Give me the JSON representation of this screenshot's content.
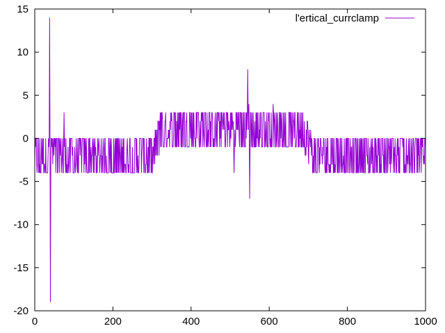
{
  "chart_data": {
    "type": "line",
    "title": "",
    "xlabel": "",
    "ylabel": "",
    "xlim": [
      0,
      1000
    ],
    "ylim": [
      -20,
      15
    ],
    "x_ticks": [
      0,
      200,
      400,
      600,
      800,
      1000
    ],
    "y_ticks": [
      -20,
      -15,
      -10,
      -5,
      0,
      5,
      10,
      15
    ],
    "x_tick_labels": [
      "0",
      "200",
      "400",
      "600",
      "800",
      "1000"
    ],
    "y_tick_labels": [
      "-20",
      "-15",
      "-10",
      "-5",
      "0",
      "5",
      "10",
      "15"
    ],
    "grid": false,
    "legend_position": "top-right",
    "series": [
      {
        "name": "l'ertical_currclamp",
        "color": "#9400d3",
        "x": [
          0,
          10,
          20,
          30,
          35,
          38,
          40,
          42,
          45,
          50,
          60,
          70,
          75,
          80,
          90,
          100,
          120,
          140,
          160,
          180,
          200,
          220,
          240,
          260,
          280,
          300,
          310,
          320,
          330,
          340,
          360,
          380,
          400,
          420,
          440,
          460,
          480,
          500,
          510,
          520,
          540,
          545,
          548,
          550,
          552,
          555,
          560,
          580,
          600,
          610,
          620,
          640,
          660,
          680,
          700,
          710,
          720,
          740,
          760,
          780,
          800,
          820,
          840,
          860,
          880,
          900,
          920,
          940,
          960,
          980,
          1000
        ],
        "y": [
          -2,
          -3,
          -1,
          -2,
          -2,
          14,
          -19,
          0,
          -5,
          -2,
          -2,
          -2,
          3,
          -1,
          -2,
          -2,
          -2,
          -2,
          -2,
          -2,
          -2,
          -2,
          -2,
          -1,
          -1,
          -1,
          -1,
          0,
          1,
          1,
          1,
          1,
          1,
          1,
          1,
          1,
          1,
          1,
          -4,
          1,
          1,
          8,
          4,
          -7,
          3,
          1,
          1,
          1,
          1,
          4,
          0,
          0,
          0,
          0,
          0,
          -1,
          -1,
          -1,
          -1,
          -2,
          -2,
          -2,
          -2,
          -2,
          -2,
          -2,
          -2,
          -2,
          -2,
          -2,
          -2
        ],
        "band_center": [
          [
            0,
            -2
          ],
          [
            300,
            -2
          ],
          [
            320,
            0.5
          ],
          [
            400,
            1
          ],
          [
            500,
            1
          ],
          [
            530,
            1
          ],
          [
            560,
            0.5
          ],
          [
            600,
            0.5
          ],
          [
            690,
            0.5
          ],
          [
            710,
            -1.5
          ],
          [
            780,
            -2
          ],
          [
            1000,
            -2
          ]
        ],
        "band_half_width": 2
      }
    ]
  }
}
